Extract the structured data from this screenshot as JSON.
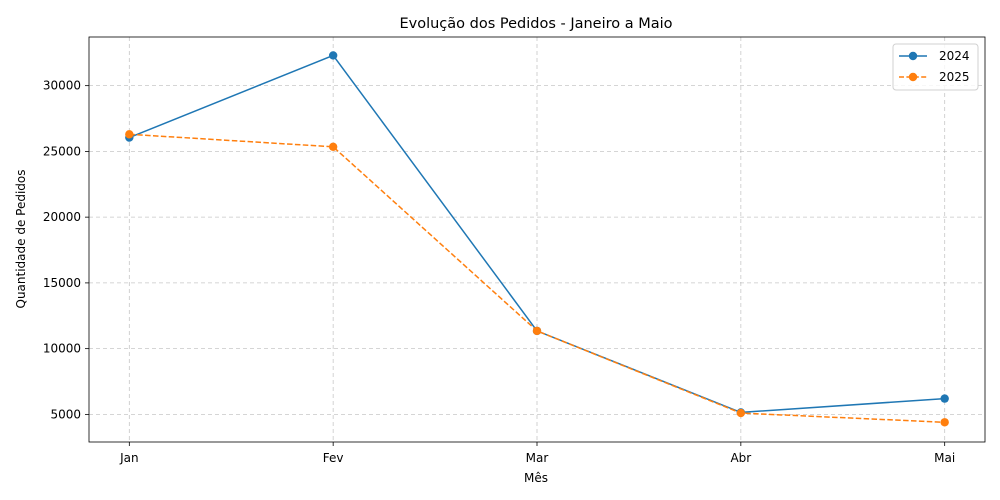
{
  "chart_data": {
    "type": "line",
    "title": "Evolução dos Pedidos - Janeiro a Maio",
    "xlabel": "Mês",
    "ylabel": "Quantidade de Pedidos",
    "categories": [
      "Jan",
      "Fev",
      "Mar",
      "Abr",
      "Mai"
    ],
    "yticks": [
      5000,
      10000,
      15000,
      20000,
      25000,
      30000
    ],
    "ylim": [
      2900,
      33700
    ],
    "grid": true,
    "legend_position": "top-right",
    "series": [
      {
        "name": "2024",
        "values": [
          26050,
          32300,
          11350,
          5150,
          6200
        ],
        "color": "#1f77b4",
        "line_style": "solid",
        "marker": "circle"
      },
      {
        "name": "2025",
        "values": [
          26300,
          25350,
          11350,
          5100,
          4400
        ],
        "color": "#ff7f0e",
        "line_style": "dashed",
        "marker": "circle"
      }
    ]
  }
}
